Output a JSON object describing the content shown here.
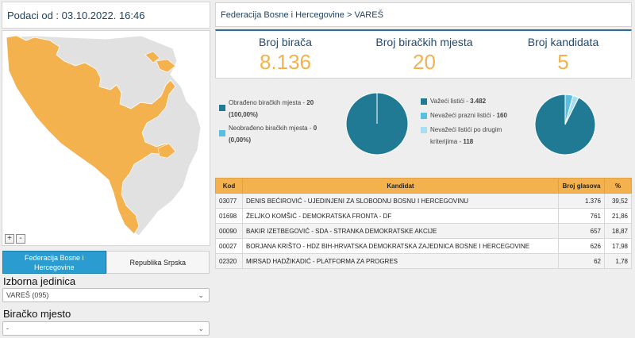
{
  "left": {
    "header_text": "Podaci od : 03.10.2022. 16:46",
    "zoom_in": "+",
    "zoom_out": "-",
    "entity_tabs": [
      "Federacija Bosne i Hercegovine",
      "Republika Srpska"
    ],
    "izborna_label": "Izborna jedinica",
    "izborna_value": "VAREŠ (095)",
    "biracko_label": "Biračko mjesto",
    "biracko_value": "-"
  },
  "right": {
    "breadcrumb": "Federacija Bosne i Hercegovine > VAREŠ",
    "stats": [
      {
        "label": "Broj birača",
        "value": "8.136"
      },
      {
        "label": "Broj biračkih mjesta",
        "value": "20"
      },
      {
        "label": "Broj kandidata",
        "value": "5"
      }
    ],
    "pie1_legend": [
      {
        "text": "Obrađeno biračkih mjesta - ",
        "value": "20",
        "extra": "(100,00%)",
        "color": "#217a94"
      },
      {
        "text": "Neobrađeno biračkih mjesta - ",
        "value": "0",
        "extra": "(0,00%)",
        "color": "#58bfe1"
      }
    ],
    "pie2_legend": [
      {
        "text": "Važeći listići - ",
        "value": "3.482",
        "color": "#217a94"
      },
      {
        "text": "Nevažeći prazni listići - ",
        "value": "160",
        "color": "#58bfe1"
      },
      {
        "text": "Nevažeći listići po drugim",
        "text2": "kriterijima - ",
        "value": "118",
        "color": "#a8dff0"
      }
    ]
  },
  "colors": {
    "accent_orange": "#f4b24f",
    "dark_teal": "#217a94",
    "light_blue": "#58bfe1",
    "pale_blue": "#a8dff0",
    "header_blue": "#1d3f5e"
  },
  "chart_data": [
    {
      "type": "pie",
      "labels": [
        "Obrađeno biračkih mjesta",
        "Neobrađeno biračkih mjesta"
      ],
      "values": [
        20,
        0
      ]
    },
    {
      "type": "pie",
      "labels": [
        "Važeći listići",
        "Nevažeći prazni listići",
        "Nevažeći listići po drugim kriterijima"
      ],
      "values": [
        3482,
        160,
        118
      ]
    }
  ],
  "table": {
    "headers": [
      "Kod",
      "Kandidat",
      "Broj glasova",
      "%"
    ],
    "rows": [
      [
        "03077",
        "DENIS BEĆIROVIĆ - UJEDINJENI ZA SLOBODNU BOSNU I HERCEGOVINU",
        "1.376",
        "39,52"
      ],
      [
        "01698",
        "ŽELJKO KOMŠIĆ - DEMOKRATSKA FRONTA - DF",
        "761",
        "21,86"
      ],
      [
        "00090",
        "BAKIR IZETBEGOVIĆ - SDA - STRANKA DEMOKRATSKE AKCIJE",
        "657",
        "18,87"
      ],
      [
        "00027",
        "BORJANA KRIŠTO - HDZ BIH-HRVATSKA DEMOKRATSKA ZAJEDNICA BOSNE I HERCEGOVINE",
        "626",
        "17,98"
      ],
      [
        "02320",
        "MIRSAD HADŽIKADIĆ - PLATFORMA ZA PROGRES",
        "62",
        "1,78"
      ]
    ]
  }
}
